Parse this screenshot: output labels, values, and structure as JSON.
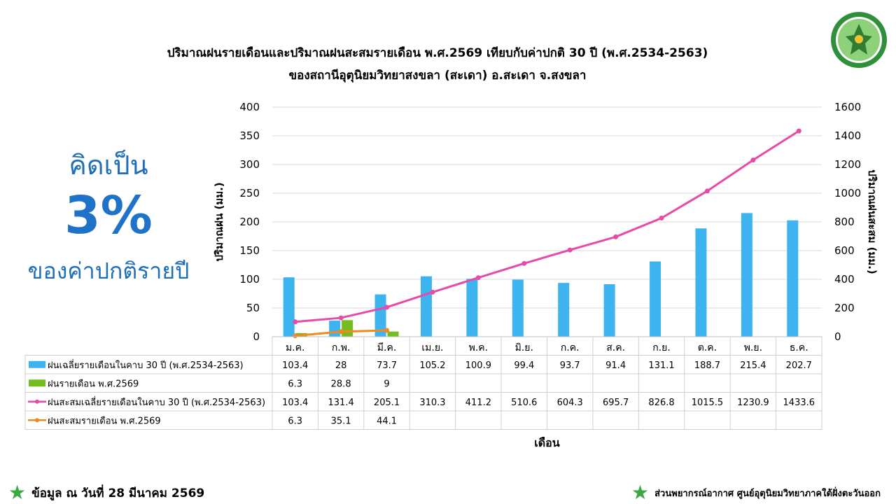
{
  "title_line1": "ปริมาณฝนรายเดือนและปริมาณฝนสะสมรายเดือน พ.ศ.2569 เทียบกับค่าปกติ 30 ปี (พ.ศ.2534-2563)",
  "title_line2": "ของสถานีอุตุนิยมวิทยาสงขลา (สะเดา) อ.สะเดา จ.สงขลา",
  "callout": {
    "top": "คิดเป็น",
    "percent": "3%",
    "bottom": "ของค่าปกติรายปี"
  },
  "footer": {
    "date_text": "ข้อมูล ณ วันที่ 28 มีนาคม 2569",
    "source_text": "ส่วนพยากรณ์อากาศ ศูนย์อุตุนิยมวิทยาภาคใต้ฝั่งตะวันออก"
  },
  "colors": {
    "normal_bar": "#3db3f0",
    "current_bar": "#74bc1f",
    "normal_cum": "#e64ba8",
    "current_cum": "#f08a1e",
    "callout": "#1f6fb8",
    "star": "#3aa843"
  },
  "chart_data": {
    "type": "bar",
    "categories": [
      "ม.ค.",
      "ก.พ.",
      "มี.ค.",
      "เม.ย.",
      "พ.ค.",
      "มิ.ย.",
      "ก.ค.",
      "ส.ค.",
      "ก.ย.",
      "ต.ค.",
      "พ.ย.",
      "ธ.ค."
    ],
    "xlabel": "เดือน",
    "ylabel": "ปริมาณฝน (มม.)",
    "y2label": "ปริมาณฝนสะสม (มม.)",
    "ylim": [
      0,
      400
    ],
    "y2lim": [
      0,
      1600
    ],
    "yticks": [
      0,
      50,
      100,
      150,
      200,
      250,
      300,
      350,
      400
    ],
    "y2ticks": [
      0,
      200,
      400,
      600,
      800,
      1000,
      1200,
      1400,
      1600
    ],
    "grid": true,
    "series": [
      {
        "name": "ฝนเฉลี่ยรายเดือนในคาบ 30 ปี (พ.ศ.2534-2563)",
        "type": "bar",
        "axis": "left",
        "color": "#3db3f0",
        "values": [
          103.4,
          28,
          73.7,
          105.2,
          100.9,
          99.4,
          93.7,
          91.4,
          131.1,
          188.7,
          215.4,
          202.7
        ]
      },
      {
        "name": "ฝนรายเดือน พ.ศ.2569",
        "type": "bar",
        "axis": "left",
        "color": "#74bc1f",
        "values": [
          6.3,
          28.8,
          9,
          null,
          null,
          null,
          null,
          null,
          null,
          null,
          null,
          null
        ]
      },
      {
        "name": "ฝนสะสมเฉลี่ยรายเดือนในคาบ 30 ปี (พ.ศ.2534-2563)",
        "type": "line",
        "axis": "right",
        "color": "#e64ba8",
        "values": [
          103.4,
          131.4,
          205.1,
          310.3,
          411.2,
          510.6,
          604.3,
          695.7,
          826.8,
          1015.5,
          1230.9,
          1433.6
        ]
      },
      {
        "name": "ฝนสะสมรายเดือน พ.ศ.2569",
        "type": "line",
        "axis": "right",
        "color": "#f08a1e",
        "values": [
          6.3,
          35.1,
          44.1,
          null,
          null,
          null,
          null,
          null,
          null,
          null,
          null,
          null
        ]
      }
    ]
  }
}
